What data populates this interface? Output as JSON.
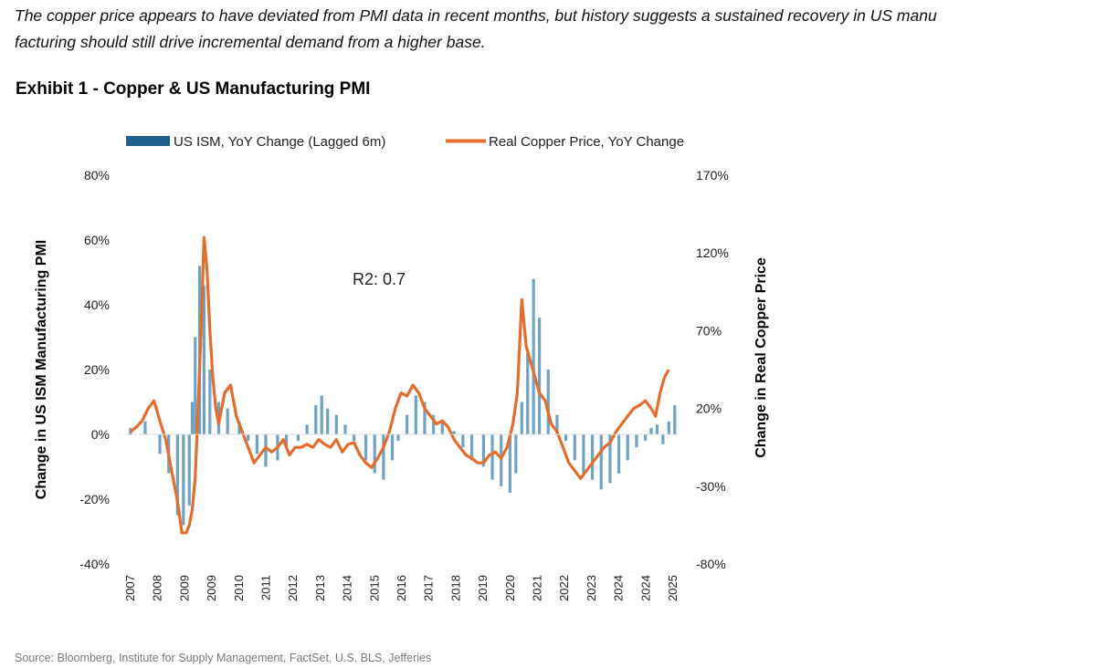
{
  "intro": {
    "line1": "The copper price appears to have deviated from PMI data in recent months, but history suggests a sustained recovery in US manu",
    "line2": "facturing should still drive incremental demand from a higher base."
  },
  "exhibit_title": "Exhibit 1 - Copper & US Manufacturing PMI",
  "source": "Source: Bloomberg, Institute for Supply Management, FactSet, U.S. BLS, Jefferies",
  "colors": {
    "bars": "#6fa3c6",
    "legend_bar": "#1f5f8b",
    "line": "#e46c2c",
    "text": "#222222"
  },
  "chart_data": {
    "type": "bar+line",
    "annotation": "R2: 0.7",
    "legend_position": "top",
    "grid": false,
    "x_tick_labels": [
      "2007",
      "2008",
      "2009",
      "2009",
      "2010",
      "2011",
      "2012",
      "2013",
      "2014",
      "2015",
      "2016",
      "2017",
      "2018",
      "2019",
      "2020",
      "2021",
      "2022",
      "2023",
      "2024",
      "2024",
      "2025"
    ],
    "x_range": [
      2006.85,
      2025.6
    ],
    "left_axis": {
      "label": "Change in US ISM Manufacturing PMI",
      "range": [
        -40,
        80
      ],
      "ticks": [
        "80%",
        "60%",
        "40%",
        "20%",
        "0%",
        "-20%",
        "-40%"
      ],
      "tick_values": [
        80,
        60,
        40,
        20,
        0,
        -20,
        -40
      ]
    },
    "right_axis": {
      "label": "Change in Real Copper Price",
      "range": [
        -80,
        170
      ],
      "ticks": [
        "170%",
        "120%",
        "70%",
        "20%",
        "-30%",
        "-80%"
      ],
      "tick_values": [
        170,
        120,
        70,
        20,
        -30,
        -80
      ]
    },
    "series": [
      {
        "name": "US ISM, YoY Change (Lagged 6m)",
        "type": "bar",
        "axis": "left",
        "x": [
          2007.0,
          2007.5,
          2008.0,
          2008.3,
          2008.6,
          2008.8,
          2009.0,
          2009.1,
          2009.2,
          2009.35,
          2009.5,
          2009.7,
          2010.0,
          2010.3,
          2010.7,
          2011.0,
          2011.3,
          2011.6,
          2012.0,
          2012.3,
          2012.7,
          2013.0,
          2013.3,
          2013.5,
          2013.7,
          2014.0,
          2014.3,
          2014.6,
          2015.0,
          2015.3,
          2015.6,
          2015.9,
          2016.1,
          2016.4,
          2016.7,
          2017.0,
          2017.3,
          2017.6,
          2018.0,
          2018.3,
          2018.6,
          2019.0,
          2019.3,
          2019.6,
          2019.9,
          2020.1,
          2020.3,
          2020.5,
          2020.7,
          2020.9,
          2021.2,
          2021.5,
          2021.8,
          2022.1,
          2022.4,
          2022.7,
          2023.0,
          2023.3,
          2023.6,
          2023.9,
          2024.2,
          2024.5,
          2024.7,
          2024.9,
          2025.1,
          2025.3,
          2025.5
        ],
        "values": [
          2,
          4,
          -6,
          -12,
          -25,
          -28,
          -22,
          10,
          30,
          52,
          46,
          20,
          10,
          8,
          4,
          -2,
          -6,
          -10,
          -8,
          -4,
          -2,
          3,
          9,
          12,
          8,
          6,
          3,
          -2,
          -8,
          -12,
          -14,
          -8,
          -2,
          6,
          12,
          10,
          6,
          4,
          1,
          -4,
          -8,
          -10,
          -14,
          -16,
          -18,
          -12,
          10,
          25,
          48,
          36,
          20,
          6,
          -2,
          -8,
          -12,
          -14,
          -17,
          -15,
          -12,
          -8,
          -4,
          -2,
          2,
          3,
          -3,
          4,
          9
        ]
      },
      {
        "name": "Real Copper Price, YoY Change",
        "type": "line",
        "axis": "right",
        "x": [
          2007.0,
          2007.2,
          2007.4,
          2007.6,
          2007.8,
          2008.0,
          2008.2,
          2008.4,
          2008.6,
          2008.75,
          2008.9,
          2009.0,
          2009.1,
          2009.2,
          2009.3,
          2009.4,
          2009.5,
          2009.6,
          2009.7,
          2009.8,
          2009.9,
          2010.0,
          2010.2,
          2010.4,
          2010.6,
          2010.8,
          2011.0,
          2011.2,
          2011.4,
          2011.6,
          2011.8,
          2012.0,
          2012.2,
          2012.4,
          2012.6,
          2012.8,
          2013.0,
          2013.2,
          2013.4,
          2013.6,
          2013.8,
          2014.0,
          2014.2,
          2014.4,
          2014.6,
          2014.8,
          2015.0,
          2015.2,
          2015.4,
          2015.6,
          2015.8,
          2016.0,
          2016.2,
          2016.4,
          2016.6,
          2016.8,
          2017.0,
          2017.2,
          2017.4,
          2017.6,
          2017.8,
          2018.0,
          2018.2,
          2018.4,
          2018.6,
          2018.8,
          2019.0,
          2019.2,
          2019.4,
          2019.6,
          2019.8,
          2020.0,
          2020.15,
          2020.3,
          2020.45,
          2020.6,
          2020.75,
          2020.9,
          2021.1,
          2021.3,
          2021.5,
          2021.7,
          2021.9,
          2022.1,
          2022.3,
          2022.5,
          2022.7,
          2022.9,
          2023.1,
          2023.3,
          2023.5,
          2023.7,
          2023.9,
          2024.1,
          2024.3,
          2024.5,
          2024.7,
          2024.85,
          2025.0,
          2025.15,
          2025.3
        ],
        "values": [
          5,
          8,
          12,
          20,
          25,
          12,
          0,
          -20,
          -40,
          -60,
          -60,
          -55,
          -45,
          -25,
          20,
          70,
          130,
          110,
          70,
          40,
          20,
          10,
          30,
          35,
          15,
          5,
          -5,
          -15,
          -10,
          -5,
          -8,
          -5,
          0,
          -10,
          -5,
          -5,
          -3,
          -5,
          0,
          -3,
          -5,
          0,
          -8,
          -3,
          -2,
          -10,
          -15,
          -18,
          -12,
          -5,
          5,
          20,
          30,
          28,
          35,
          30,
          20,
          15,
          10,
          12,
          8,
          0,
          -5,
          -10,
          -12,
          -15,
          -15,
          -10,
          -8,
          -12,
          -5,
          10,
          30,
          90,
          60,
          50,
          40,
          30,
          25,
          10,
          5,
          -5,
          -15,
          -20,
          -25,
          -20,
          -15,
          -10,
          -5,
          -2,
          5,
          10,
          15,
          20,
          22,
          25,
          20,
          15,
          30,
          40,
          45
        ]
      }
    ]
  }
}
